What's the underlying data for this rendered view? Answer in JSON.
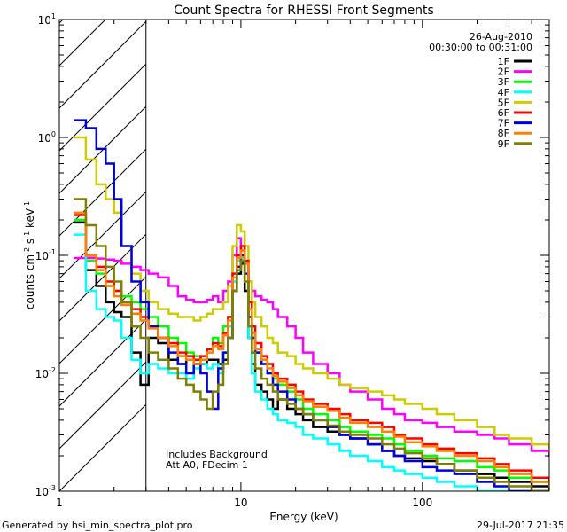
{
  "page": {
    "footer_left": "Generated by hsi_min_spectra_plot.pro",
    "footer_right": "29-Jul-2017 21:35"
  },
  "chart_data": {
    "type": "line",
    "title": "Count Spectra for RHESSI Front Segments",
    "xlabel": "Energy (keV)",
    "ylabel_parts": [
      "counts cm",
      "-2",
      " s",
      "-1",
      " keV",
      "-1"
    ],
    "xscale": "log",
    "yscale": "log",
    "xlim": [
      1,
      500
    ],
    "ylim": [
      0.001,
      10
    ],
    "x_ticks": [
      {
        "value": 1,
        "label": "1"
      },
      {
        "value": 10,
        "label": "10"
      },
      {
        "value": 100,
        "label": "100"
      }
    ],
    "y_ticks": [
      {
        "exp": -3,
        "base": "10",
        "sup": "-3"
      },
      {
        "exp": -2,
        "base": "10",
        "sup": "-2"
      },
      {
        "exp": -1,
        "base": "10",
        "sup": "-1"
      },
      {
        "exp": 0,
        "base": "10",
        "sup": "0"
      },
      {
        "exp": 1,
        "base": "10",
        "sup": "1"
      }
    ],
    "date": "26-Aug-2010",
    "time_range": "00:30:00 to 00:31:00",
    "excluded_region_max_kev": 3,
    "annotation_lines": [
      "Includes Background",
      "Att A0, FDecim 1"
    ],
    "legend_position": "top-right",
    "series": [
      {
        "name": "1F",
        "color": "#000000",
        "x": [
          1.2,
          1.4,
          1.6,
          1.8,
          2.0,
          2.2,
          2.5,
          2.8,
          3.1,
          3.5,
          4,
          4.5,
          5,
          5.5,
          6,
          6.5,
          7,
          7.5,
          8,
          8.5,
          9,
          9.5,
          10,
          10.5,
          11,
          11.5,
          12,
          13,
          14,
          15,
          16,
          18,
          20,
          22,
          25,
          30,
          35,
          40,
          50,
          60,
          70,
          80,
          100,
          120,
          150,
          200,
          250,
          300,
          400,
          500
        ],
        "y": [
          0.19,
          0.075,
          0.055,
          0.04,
          0.033,
          0.03,
          0.015,
          0.008,
          0.02,
          0.018,
          0.013,
          0.012,
          0.013,
          0.012,
          0.012,
          0.013,
          0.013,
          0.012,
          0.013,
          0.02,
          0.05,
          0.07,
          0.085,
          0.05,
          0.02,
          0.012,
          0.008,
          0.007,
          0.006,
          0.005,
          0.006,
          0.005,
          0.0045,
          0.004,
          0.0035,
          0.0032,
          0.003,
          0.0028,
          0.0025,
          0.0022,
          0.002,
          0.0019,
          0.0018,
          0.0017,
          0.0015,
          0.0014,
          0.0013,
          0.0012,
          0.0011,
          0.001
        ]
      },
      {
        "name": "2F",
        "color": "#ff00ff",
        "x": [
          1.2,
          1.4,
          1.6,
          1.8,
          2.0,
          2.2,
          2.5,
          2.8,
          3.1,
          3.5,
          4,
          4.5,
          5,
          5.5,
          6,
          6.5,
          7,
          7.5,
          8,
          8.5,
          9,
          9.5,
          10,
          10.5,
          11,
          11.5,
          12,
          13,
          14,
          15,
          16,
          18,
          20,
          22,
          25,
          30,
          35,
          40,
          50,
          60,
          70,
          80,
          100,
          120,
          150,
          200,
          250,
          300,
          400,
          500
        ],
        "y": [
          0.095,
          0.095,
          0.094,
          0.092,
          0.09,
          0.085,
          0.08,
          0.075,
          0.07,
          0.065,
          0.055,
          0.045,
          0.042,
          0.04,
          0.04,
          0.042,
          0.045,
          0.04,
          0.05,
          0.06,
          0.1,
          0.14,
          0.11,
          0.09,
          0.06,
          0.05,
          0.045,
          0.042,
          0.04,
          0.035,
          0.03,
          0.025,
          0.02,
          0.015,
          0.012,
          0.01,
          0.008,
          0.007,
          0.006,
          0.005,
          0.0045,
          0.004,
          0.0038,
          0.0035,
          0.0032,
          0.003,
          0.0028,
          0.0025,
          0.0022,
          0.002
        ]
      },
      {
        "name": "3F",
        "color": "#00ff00",
        "x": [
          1.2,
          1.4,
          1.6,
          1.8,
          2.0,
          2.2,
          2.5,
          2.8,
          3.1,
          3.5,
          4,
          4.5,
          5,
          5.5,
          6,
          6.5,
          7,
          7.5,
          8,
          8.5,
          9,
          9.5,
          10,
          10.5,
          11,
          11.5,
          12,
          13,
          14,
          15,
          16,
          18,
          20,
          22,
          25,
          30,
          35,
          40,
          50,
          60,
          70,
          80,
          100,
          120,
          150,
          200,
          250,
          300,
          400,
          500
        ],
        "y": [
          0.2,
          0.09,
          0.07,
          0.055,
          0.05,
          0.045,
          0.04,
          0.035,
          0.03,
          0.025,
          0.02,
          0.018,
          0.015,
          0.014,
          0.013,
          0.016,
          0.02,
          0.018,
          0.025,
          0.03,
          0.06,
          0.08,
          0.09,
          0.06,
          0.03,
          0.02,
          0.015,
          0.012,
          0.01,
          0.009,
          0.008,
          0.007,
          0.006,
          0.005,
          0.0045,
          0.004,
          0.0035,
          0.0032,
          0.003,
          0.0028,
          0.0025,
          0.0022,
          0.002,
          0.0019,
          0.0018,
          0.0016,
          0.0015,
          0.0013,
          0.0012,
          0.0011
        ]
      },
      {
        "name": "4F",
        "color": "#00ffff",
        "x": [
          1.2,
          1.4,
          1.6,
          1.8,
          2.0,
          2.2,
          2.5,
          2.8,
          3.1,
          3.5,
          4,
          4.5,
          5,
          5.5,
          6,
          6.5,
          7,
          7.5,
          8,
          8.5,
          9,
          9.5,
          10,
          10.5,
          11,
          11.5,
          12,
          13,
          14,
          15,
          16,
          18,
          20,
          22,
          25,
          30,
          35,
          40,
          50,
          60,
          70,
          80,
          100,
          120,
          150,
          200,
          250,
          300,
          400,
          500
        ],
        "y": [
          0.15,
          0.05,
          0.035,
          0.03,
          0.028,
          0.02,
          0.013,
          0.01,
          0.012,
          0.011,
          0.01,
          0.01,
          0.009,
          0.011,
          0.012,
          0.011,
          0.012,
          0.01,
          0.015,
          0.025,
          0.06,
          0.09,
          0.095,
          0.06,
          0.02,
          0.01,
          0.007,
          0.006,
          0.005,
          0.0045,
          0.004,
          0.0038,
          0.0035,
          0.003,
          0.0028,
          0.0025,
          0.0022,
          0.002,
          0.0018,
          0.0016,
          0.0015,
          0.0014,
          0.0013,
          0.0012,
          0.0011,
          0.001,
          0.001,
          0.001,
          0.001,
          0.001
        ]
      },
      {
        "name": "5F",
        "color": "#cccc00",
        "x": [
          1.2,
          1.4,
          1.6,
          1.8,
          2.0,
          2.2,
          2.5,
          2.8,
          3.1,
          3.5,
          4,
          4.5,
          5,
          5.5,
          6,
          6.5,
          7,
          7.5,
          8,
          8.5,
          9,
          9.5,
          10,
          10.5,
          11,
          11.5,
          12,
          13,
          14,
          15,
          16,
          18,
          20,
          22,
          25,
          30,
          35,
          40,
          50,
          60,
          70,
          80,
          100,
          120,
          150,
          200,
          250,
          300,
          400,
          500
        ],
        "y": [
          1.0,
          0.65,
          0.4,
          0.3,
          0.23,
          0.12,
          0.07,
          0.05,
          0.04,
          0.035,
          0.032,
          0.03,
          0.03,
          0.028,
          0.03,
          0.032,
          0.035,
          0.035,
          0.04,
          0.055,
          0.12,
          0.18,
          0.16,
          0.12,
          0.06,
          0.04,
          0.03,
          0.025,
          0.02,
          0.018,
          0.015,
          0.014,
          0.012,
          0.011,
          0.01,
          0.009,
          0.008,
          0.0075,
          0.007,
          0.0065,
          0.006,
          0.0055,
          0.005,
          0.0045,
          0.004,
          0.0035,
          0.003,
          0.0028,
          0.0025,
          0.0022
        ]
      },
      {
        "name": "6F",
        "color": "#ff0000",
        "x": [
          1.2,
          1.4,
          1.6,
          1.8,
          2.0,
          2.2,
          2.5,
          2.8,
          3.1,
          3.5,
          4,
          4.5,
          5,
          5.5,
          6,
          6.5,
          7,
          7.5,
          8,
          8.5,
          9,
          9.5,
          10,
          10.5,
          11,
          11.5,
          12,
          13,
          14,
          15,
          16,
          18,
          20,
          22,
          25,
          30,
          35,
          40,
          50,
          60,
          70,
          80,
          100,
          120,
          150,
          200,
          250,
          300,
          400,
          500
        ],
        "y": [
          0.22,
          0.1,
          0.08,
          0.06,
          0.05,
          0.04,
          0.035,
          0.03,
          0.025,
          0.02,
          0.018,
          0.015,
          0.014,
          0.013,
          0.014,
          0.016,
          0.018,
          0.017,
          0.022,
          0.03,
          0.07,
          0.1,
          0.12,
          0.09,
          0.04,
          0.025,
          0.018,
          0.014,
          0.012,
          0.01,
          0.009,
          0.008,
          0.007,
          0.006,
          0.0055,
          0.005,
          0.0045,
          0.004,
          0.0038,
          0.0035,
          0.003,
          0.0028,
          0.0025,
          0.0023,
          0.0021,
          0.0019,
          0.0017,
          0.0015,
          0.0013,
          0.0012
        ]
      },
      {
        "name": "7F",
        "color": "#0000dd",
        "x": [
          1.2,
          1.4,
          1.6,
          1.8,
          2.0,
          2.2,
          2.5,
          2.8,
          3.1,
          3.5,
          4,
          4.5,
          5,
          5.5,
          6,
          6.5,
          7,
          7.5,
          8,
          8.5,
          9,
          9.5,
          10,
          10.5,
          11,
          11.5,
          12,
          13,
          14,
          15,
          16,
          18,
          20,
          22,
          25,
          30,
          35,
          40,
          50,
          60,
          70,
          80,
          100,
          120,
          150,
          200,
          250,
          300,
          400,
          500
        ],
        "y": [
          1.4,
          1.2,
          0.8,
          0.6,
          0.3,
          0.12,
          0.06,
          0.04,
          0.025,
          0.02,
          0.015,
          0.012,
          0.01,
          0.012,
          0.01,
          0.007,
          0.005,
          0.011,
          0.015,
          0.02,
          0.05,
          0.08,
          0.1,
          0.07,
          0.03,
          0.02,
          0.015,
          0.012,
          0.01,
          0.008,
          0.007,
          0.006,
          0.005,
          0.0045,
          0.004,
          0.0035,
          0.003,
          0.0028,
          0.0025,
          0.0022,
          0.002,
          0.0018,
          0.0016,
          0.0015,
          0.0014,
          0.0012,
          0.0011,
          0.001,
          0.001,
          0.001
        ]
      },
      {
        "name": "8F",
        "color": "#ff8000",
        "x": [
          1.2,
          1.4,
          1.6,
          1.8,
          2.0,
          2.2,
          2.5,
          2.8,
          3.1,
          3.5,
          4,
          4.5,
          5,
          5.5,
          6,
          6.5,
          7,
          7.5,
          8,
          8.5,
          9,
          9.5,
          10,
          10.5,
          11,
          11.5,
          12,
          13,
          14,
          15,
          16,
          18,
          20,
          22,
          25,
          30,
          35,
          40,
          50,
          60,
          70,
          80,
          100,
          120,
          150,
          200,
          250,
          300,
          400,
          500
        ],
        "y": [
          0.23,
          0.1,
          0.075,
          0.055,
          0.045,
          0.038,
          0.032,
          0.028,
          0.024,
          0.02,
          0.017,
          0.014,
          0.013,
          0.012,
          0.013,
          0.015,
          0.017,
          0.016,
          0.021,
          0.028,
          0.065,
          0.095,
          0.11,
          0.085,
          0.035,
          0.022,
          0.016,
          0.013,
          0.011,
          0.0095,
          0.0085,
          0.0075,
          0.0065,
          0.0058,
          0.0052,
          0.0048,
          0.0042,
          0.0038,
          0.0035,
          0.0032,
          0.0029,
          0.0026,
          0.0024,
          0.0022,
          0.002,
          0.0018,
          0.0016,
          0.0014,
          0.0012,
          0.0011
        ]
      },
      {
        "name": "9F",
        "color": "#808000",
        "x": [
          1.2,
          1.4,
          1.6,
          1.8,
          2.0,
          2.2,
          2.5,
          2.8,
          3.1,
          3.5,
          4,
          4.5,
          5,
          5.5,
          6,
          6.5,
          7,
          7.5,
          8,
          8.5,
          9,
          9.5,
          10,
          10.5,
          11,
          11.5,
          12,
          13,
          14,
          15,
          16,
          18,
          20,
          22,
          25,
          30,
          35,
          40,
          50,
          60,
          70,
          80,
          100,
          120,
          150,
          200,
          250,
          300,
          400,
          500
        ],
        "y": [
          0.3,
          0.18,
          0.12,
          0.08,
          0.06,
          0.04,
          0.025,
          0.02,
          0.015,
          0.013,
          0.011,
          0.009,
          0.008,
          0.007,
          0.006,
          0.005,
          0.007,
          0.008,
          0.012,
          0.02,
          0.05,
          0.075,
          0.09,
          0.06,
          0.025,
          0.015,
          0.011,
          0.009,
          0.008,
          0.007,
          0.006,
          0.0055,
          0.005,
          0.0045,
          0.004,
          0.0036,
          0.0032,
          0.003,
          0.0028,
          0.0025,
          0.0023,
          0.0021,
          0.0019,
          0.0017,
          0.0015,
          0.0013,
          0.0012,
          0.0011,
          0.001,
          0.001
        ]
      }
    ]
  }
}
